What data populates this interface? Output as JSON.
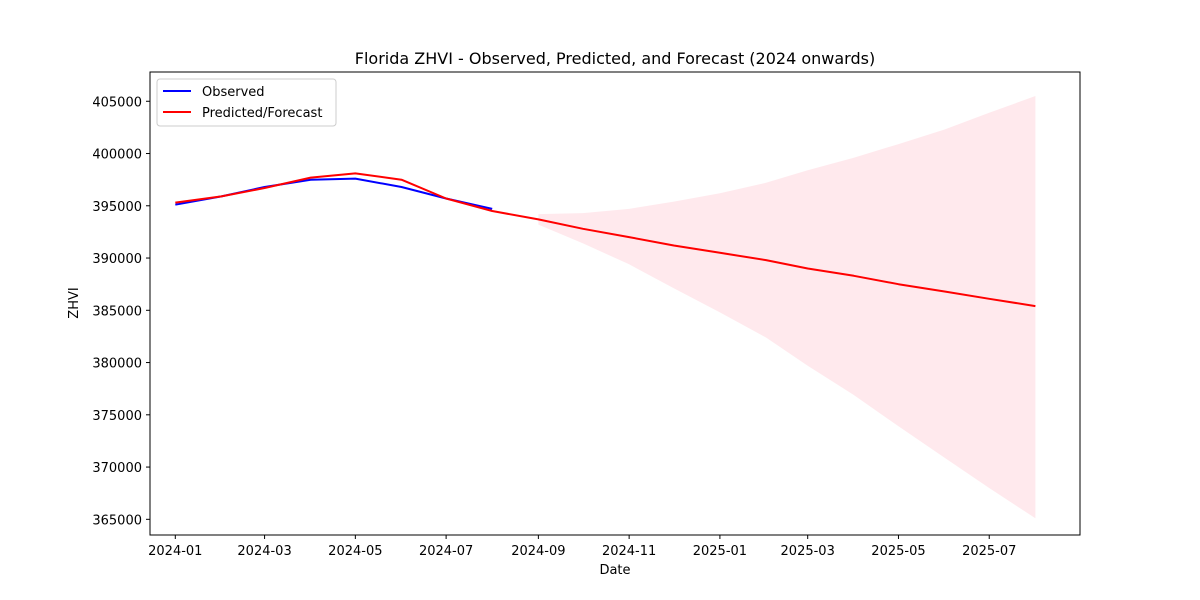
{
  "chart_data": {
    "type": "line",
    "title": "Florida ZHVI - Observed, Predicted, and Forecast (2024 onwards)",
    "xlabel": "Date",
    "ylabel": "ZHVI",
    "xlim": [
      "2023-12-15",
      "2025-08-31"
    ],
    "ylim": [
      363500,
      407800
    ],
    "x_ticks": [
      "2024-01",
      "2024-03",
      "2024-05",
      "2024-07",
      "2024-09",
      "2024-11",
      "2025-01",
      "2025-03",
      "2025-05",
      "2025-07"
    ],
    "y_ticks": [
      365000,
      370000,
      375000,
      380000,
      385000,
      390000,
      395000,
      400000,
      405000
    ],
    "grid": false,
    "legend_position": "top-left",
    "series": [
      {
        "name": "Observed",
        "color": "#0000ff",
        "x": [
          "2024-01-01",
          "2024-02-01",
          "2024-03-01",
          "2024-04-01",
          "2024-05-01",
          "2024-06-01",
          "2024-07-01",
          "2024-08-01"
        ],
        "y": [
          395100,
          395900,
          396800,
          397500,
          397600,
          396800,
          395700,
          394700
        ]
      },
      {
        "name": "Predicted/Forecast",
        "color": "#ff0000",
        "x": [
          "2024-01-01",
          "2024-02-01",
          "2024-03-01",
          "2024-04-01",
          "2024-05-01",
          "2024-06-01",
          "2024-07-01",
          "2024-08-01",
          "2024-09-01",
          "2024-10-01",
          "2024-11-01",
          "2024-12-01",
          "2025-01-01",
          "2025-02-01",
          "2025-03-01",
          "2025-04-01",
          "2025-05-01",
          "2025-06-01",
          "2025-07-01",
          "2025-08-01"
        ],
        "y": [
          395300,
          395900,
          396700,
          397700,
          398100,
          397500,
          395700,
          394500,
          393700,
          392800,
          392000,
          391200,
          390500,
          389800,
          389000,
          388300,
          387500,
          386800,
          386100,
          385400
        ]
      }
    ],
    "confidence_band": {
      "color": "#ffc0cb",
      "x": [
        "2024-09-01",
        "2024-10-01",
        "2024-11-01",
        "2024-12-01",
        "2025-01-01",
        "2025-02-01",
        "2025-03-01",
        "2025-04-01",
        "2025-05-01",
        "2025-06-01",
        "2025-07-01",
        "2025-08-01"
      ],
      "lower": [
        393200,
        391400,
        389400,
        387100,
        384800,
        382400,
        379700,
        376900,
        373900,
        370900,
        368000,
        365100
      ],
      "upper": [
        394200,
        394300,
        394700,
        395400,
        396200,
        397200,
        398400,
        399600,
        400900,
        402300,
        403900,
        405500
      ]
    }
  }
}
